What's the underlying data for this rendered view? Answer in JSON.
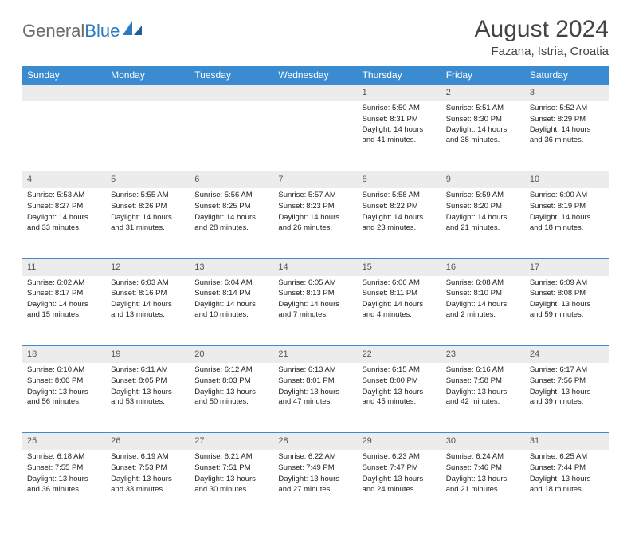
{
  "brand": {
    "part1": "General",
    "part2": "Blue"
  },
  "title": "August 2024",
  "location": "Fazana, Istria, Croatia",
  "colors": {
    "header_bg": "#3a8bd0",
    "daynum_bg": "#ececec",
    "rule": "#3a8bd0",
    "text": "#333333",
    "brand_gray": "#6b6b6b",
    "brand_blue": "#2c79c0"
  },
  "weekdays": [
    "Sunday",
    "Monday",
    "Tuesday",
    "Wednesday",
    "Thursday",
    "Friday",
    "Saturday"
  ],
  "weeks": [
    [
      null,
      null,
      null,
      null,
      {
        "n": "1",
        "sr": "Sunrise: 5:50 AM",
        "ss": "Sunset: 8:31 PM",
        "dl": "Daylight: 14 hours and 41 minutes."
      },
      {
        "n": "2",
        "sr": "Sunrise: 5:51 AM",
        "ss": "Sunset: 8:30 PM",
        "dl": "Daylight: 14 hours and 38 minutes."
      },
      {
        "n": "3",
        "sr": "Sunrise: 5:52 AM",
        "ss": "Sunset: 8:29 PM",
        "dl": "Daylight: 14 hours and 36 minutes."
      }
    ],
    [
      {
        "n": "4",
        "sr": "Sunrise: 5:53 AM",
        "ss": "Sunset: 8:27 PM",
        "dl": "Daylight: 14 hours and 33 minutes."
      },
      {
        "n": "5",
        "sr": "Sunrise: 5:55 AM",
        "ss": "Sunset: 8:26 PM",
        "dl": "Daylight: 14 hours and 31 minutes."
      },
      {
        "n": "6",
        "sr": "Sunrise: 5:56 AM",
        "ss": "Sunset: 8:25 PM",
        "dl": "Daylight: 14 hours and 28 minutes."
      },
      {
        "n": "7",
        "sr": "Sunrise: 5:57 AM",
        "ss": "Sunset: 8:23 PM",
        "dl": "Daylight: 14 hours and 26 minutes."
      },
      {
        "n": "8",
        "sr": "Sunrise: 5:58 AM",
        "ss": "Sunset: 8:22 PM",
        "dl": "Daylight: 14 hours and 23 minutes."
      },
      {
        "n": "9",
        "sr": "Sunrise: 5:59 AM",
        "ss": "Sunset: 8:20 PM",
        "dl": "Daylight: 14 hours and 21 minutes."
      },
      {
        "n": "10",
        "sr": "Sunrise: 6:00 AM",
        "ss": "Sunset: 8:19 PM",
        "dl": "Daylight: 14 hours and 18 minutes."
      }
    ],
    [
      {
        "n": "11",
        "sr": "Sunrise: 6:02 AM",
        "ss": "Sunset: 8:17 PM",
        "dl": "Daylight: 14 hours and 15 minutes."
      },
      {
        "n": "12",
        "sr": "Sunrise: 6:03 AM",
        "ss": "Sunset: 8:16 PM",
        "dl": "Daylight: 14 hours and 13 minutes."
      },
      {
        "n": "13",
        "sr": "Sunrise: 6:04 AM",
        "ss": "Sunset: 8:14 PM",
        "dl": "Daylight: 14 hours and 10 minutes."
      },
      {
        "n": "14",
        "sr": "Sunrise: 6:05 AM",
        "ss": "Sunset: 8:13 PM",
        "dl": "Daylight: 14 hours and 7 minutes."
      },
      {
        "n": "15",
        "sr": "Sunrise: 6:06 AM",
        "ss": "Sunset: 8:11 PM",
        "dl": "Daylight: 14 hours and 4 minutes."
      },
      {
        "n": "16",
        "sr": "Sunrise: 6:08 AM",
        "ss": "Sunset: 8:10 PM",
        "dl": "Daylight: 14 hours and 2 minutes."
      },
      {
        "n": "17",
        "sr": "Sunrise: 6:09 AM",
        "ss": "Sunset: 8:08 PM",
        "dl": "Daylight: 13 hours and 59 minutes."
      }
    ],
    [
      {
        "n": "18",
        "sr": "Sunrise: 6:10 AM",
        "ss": "Sunset: 8:06 PM",
        "dl": "Daylight: 13 hours and 56 minutes."
      },
      {
        "n": "19",
        "sr": "Sunrise: 6:11 AM",
        "ss": "Sunset: 8:05 PM",
        "dl": "Daylight: 13 hours and 53 minutes."
      },
      {
        "n": "20",
        "sr": "Sunrise: 6:12 AM",
        "ss": "Sunset: 8:03 PM",
        "dl": "Daylight: 13 hours and 50 minutes."
      },
      {
        "n": "21",
        "sr": "Sunrise: 6:13 AM",
        "ss": "Sunset: 8:01 PM",
        "dl": "Daylight: 13 hours and 47 minutes."
      },
      {
        "n": "22",
        "sr": "Sunrise: 6:15 AM",
        "ss": "Sunset: 8:00 PM",
        "dl": "Daylight: 13 hours and 45 minutes."
      },
      {
        "n": "23",
        "sr": "Sunrise: 6:16 AM",
        "ss": "Sunset: 7:58 PM",
        "dl": "Daylight: 13 hours and 42 minutes."
      },
      {
        "n": "24",
        "sr": "Sunrise: 6:17 AM",
        "ss": "Sunset: 7:56 PM",
        "dl": "Daylight: 13 hours and 39 minutes."
      }
    ],
    [
      {
        "n": "25",
        "sr": "Sunrise: 6:18 AM",
        "ss": "Sunset: 7:55 PM",
        "dl": "Daylight: 13 hours and 36 minutes."
      },
      {
        "n": "26",
        "sr": "Sunrise: 6:19 AM",
        "ss": "Sunset: 7:53 PM",
        "dl": "Daylight: 13 hours and 33 minutes."
      },
      {
        "n": "27",
        "sr": "Sunrise: 6:21 AM",
        "ss": "Sunset: 7:51 PM",
        "dl": "Daylight: 13 hours and 30 minutes."
      },
      {
        "n": "28",
        "sr": "Sunrise: 6:22 AM",
        "ss": "Sunset: 7:49 PM",
        "dl": "Daylight: 13 hours and 27 minutes."
      },
      {
        "n": "29",
        "sr": "Sunrise: 6:23 AM",
        "ss": "Sunset: 7:47 PM",
        "dl": "Daylight: 13 hours and 24 minutes."
      },
      {
        "n": "30",
        "sr": "Sunrise: 6:24 AM",
        "ss": "Sunset: 7:46 PM",
        "dl": "Daylight: 13 hours and 21 minutes."
      },
      {
        "n": "31",
        "sr": "Sunrise: 6:25 AM",
        "ss": "Sunset: 7:44 PM",
        "dl": "Daylight: 13 hours and 18 minutes."
      }
    ]
  ]
}
